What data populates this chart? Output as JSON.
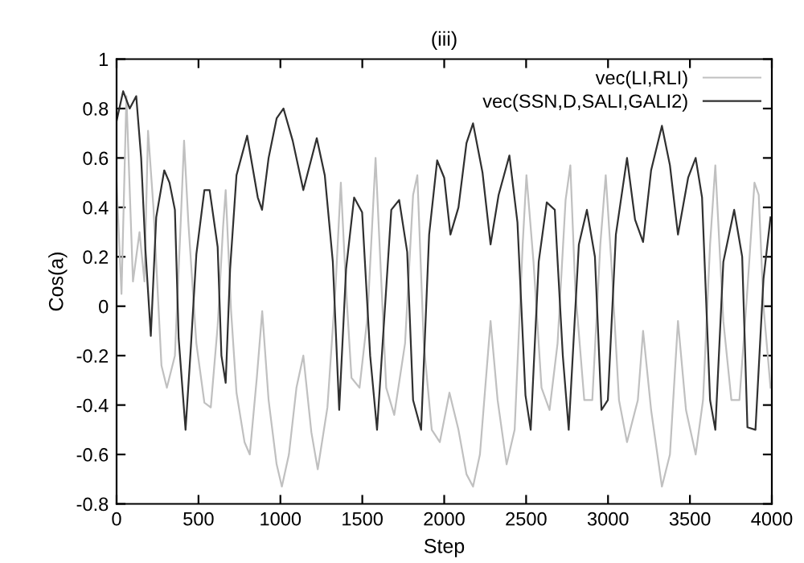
{
  "chart_data": {
    "type": "line",
    "title": "(iii)",
    "xlabel": "Step",
    "ylabel": "Cos(a)",
    "xlim": [
      0,
      4000
    ],
    "ylim": [
      -0.8,
      1
    ],
    "xticks": [
      0,
      500,
      1000,
      1500,
      2000,
      2500,
      3000,
      3500,
      4000
    ],
    "yticks": [
      -0.8,
      -0.6,
      -0.4,
      -0.2,
      0,
      0.2,
      0.4,
      0.6,
      0.8,
      1
    ],
    "grid": false,
    "legend": "top right",
    "line_style": "solid",
    "marker": "none",
    "series": [
      {
        "name": "vec(LI,RLI)",
        "color": "#c0c0c0",
        "x": [
          0,
          30,
          60,
          100,
          140,
          170,
          192,
          225,
          274,
          307,
          356,
          389,
          412,
          438,
          487,
          536,
          575,
          617,
          650,
          666,
          699,
          732,
          781,
          813,
          856,
          889,
          928,
          977,
          1009,
          1052,
          1098,
          1140,
          1189,
          1228,
          1287,
          1336,
          1369,
          1401,
          1434,
          1483,
          1532,
          1581,
          1646,
          1695,
          1761,
          1810,
          1836,
          1875,
          1924,
          1973,
          2032,
          2087,
          2136,
          2176,
          2218,
          2283,
          2326,
          2381,
          2430,
          2479,
          2502,
          2545,
          2594,
          2643,
          2692,
          2741,
          2770,
          2800,
          2855,
          2904,
          2953,
          2986,
          3020,
          3067,
          3116,
          3182,
          3214,
          3263,
          3329,
          3378,
          3427,
          3476,
          3535,
          3580,
          3623,
          3655,
          3704,
          3753,
          3802,
          3851,
          3894,
          3920,
          3949,
          3992
        ],
        "values": [
          0.5,
          0.05,
          0.85,
          0.1,
          0.3,
          0.1,
          0.71,
          0.4,
          -0.24,
          -0.33,
          -0.2,
          0.3,
          0.67,
          0.34,
          -0.15,
          -0.39,
          -0.41,
          -0.08,
          0.32,
          0.47,
          -0.02,
          -0.35,
          -0.55,
          -0.6,
          -0.29,
          -0.02,
          -0.38,
          -0.64,
          -0.73,
          -0.6,
          -0.33,
          -0.2,
          -0.51,
          -0.66,
          -0.41,
          0.07,
          0.5,
          0.07,
          -0.29,
          -0.33,
          -0.04,
          0.6,
          -0.33,
          -0.44,
          -0.15,
          0.45,
          0.53,
          -0.15,
          -0.5,
          -0.55,
          -0.35,
          -0.5,
          -0.68,
          -0.73,
          -0.6,
          -0.06,
          -0.38,
          -0.64,
          -0.5,
          0.25,
          0.53,
          0.18,
          -0.33,
          -0.42,
          -0.15,
          0.43,
          0.57,
          0.07,
          -0.38,
          -0.38,
          0.25,
          0.53,
          0.18,
          -0.38,
          -0.55,
          -0.38,
          -0.1,
          -0.42,
          -0.73,
          -0.6,
          -0.06,
          -0.42,
          -0.6,
          -0.38,
          0.25,
          0.57,
          -0.06,
          -0.38,
          -0.38,
          0.07,
          0.5,
          0.45,
          0.0,
          -0.33
        ]
      },
      {
        "name": "vec(SSN,D,SALI,GALI2)",
        "color": "#303030",
        "x": [
          0,
          40,
          80,
          120,
          150,
          176,
          209,
          242,
          291,
          323,
          356,
          379,
          421,
          454,
          487,
          536,
          568,
          617,
          640,
          666,
          693,
          732,
          797,
          862,
          888,
          928,
          977,
          1019,
          1075,
          1140,
          1222,
          1271,
          1320,
          1359,
          1401,
          1450,
          1499,
          1548,
          1590,
          1677,
          1725,
          1774,
          1810,
          1859,
          1908,
          1957,
          2000,
          2038,
          2087,
          2136,
          2176,
          2234,
          2283,
          2332,
          2398,
          2447,
          2496,
          2528,
          2577,
          2626,
          2675,
          2724,
          2760,
          2822,
          2871,
          2920,
          2960,
          2999,
          3048,
          3116,
          3165,
          3214,
          3263,
          3329,
          3378,
          3427,
          3489,
          3535,
          3574,
          3623,
          3655,
          3704,
          3770,
          3819,
          3851,
          3900,
          3949,
          3992
        ],
        "values": [
          0.75,
          0.87,
          0.8,
          0.85,
          0.6,
          0.23,
          -0.12,
          0.36,
          0.55,
          0.5,
          0.39,
          -0.13,
          -0.5,
          -0.16,
          0.21,
          0.47,
          0.47,
          0.24,
          -0.2,
          -0.31,
          0.15,
          0.53,
          0.69,
          0.44,
          0.39,
          0.6,
          0.76,
          0.8,
          0.67,
          0.47,
          0.68,
          0.53,
          0.18,
          -0.42,
          0.15,
          0.44,
          0.38,
          -0.2,
          -0.5,
          0.39,
          0.43,
          0.22,
          -0.38,
          -0.5,
          0.29,
          0.59,
          0.52,
          0.29,
          0.4,
          0.66,
          0.74,
          0.54,
          0.25,
          0.45,
          0.61,
          0.34,
          -0.36,
          -0.5,
          0.18,
          0.42,
          0.39,
          -0.2,
          -0.5,
          0.25,
          0.39,
          0.2,
          -0.42,
          -0.38,
          0.29,
          0.6,
          0.35,
          0.26,
          0.55,
          0.73,
          0.57,
          0.29,
          0.52,
          0.6,
          0.44,
          -0.38,
          -0.5,
          0.18,
          0.39,
          0.2,
          -0.49,
          -0.5,
          0.11,
          0.36
        ]
      }
    ]
  }
}
